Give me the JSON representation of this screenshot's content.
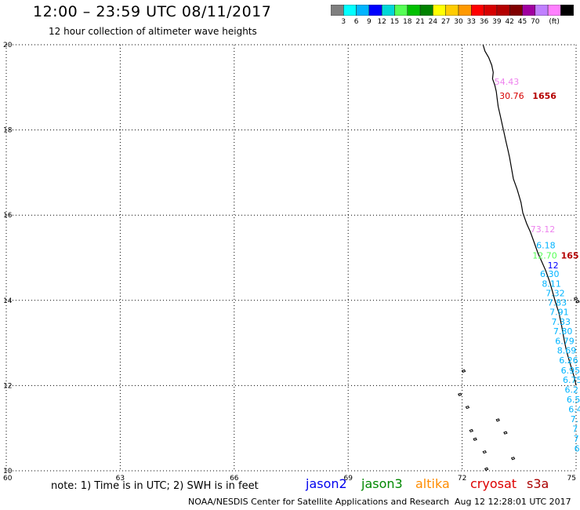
{
  "header": {
    "title": "12:00 – 23:59 UTC 08/11/2017",
    "subtitle": "12 hour collection of altimeter wave heights"
  },
  "colorbar": {
    "swatches": [
      "#7f7f7f",
      "#00ffff",
      "#00b4ff",
      "#0000ff",
      "#00d7d7",
      "#55ff55",
      "#00c000",
      "#008200",
      "#ffff00",
      "#ffcc00",
      "#ff9900",
      "#ff0000",
      "#d70000",
      "#b40000",
      "#800000",
      "#a000a0",
      "#c080ff",
      "#ff80ff",
      "#000000"
    ],
    "labels": [
      "3",
      "6",
      "9",
      "12",
      "15",
      "18",
      "21",
      "24",
      "27",
      "30",
      "33",
      "36",
      "39",
      "42",
      "45",
      "70",
      "(ft)"
    ]
  },
  "chart_data": {
    "type": "scatter",
    "title": "12:00 – 23:59 UTC 08/11/2017",
    "xlabel": "",
    "ylabel": "",
    "xlim": [
      60,
      75
    ],
    "ylim": [
      10,
      20
    ],
    "x_ticks": [
      "60",
      "63",
      "66",
      "69",
      "72",
      "75"
    ],
    "y_ticks": [
      "10",
      "12",
      "14",
      "16",
      "18",
      "20"
    ],
    "grid": true,
    "annotations": [
      {
        "text": "54.43",
        "lon": 72.85,
        "lat": 19.06,
        "color": "#ee82ee"
      },
      {
        "text": "30.76",
        "lon": 72.98,
        "lat": 18.73,
        "color": "#d70000"
      },
      {
        "text": "1656",
        "lon": 73.85,
        "lat": 18.73,
        "color": "#b40000",
        "bold": true
      },
      {
        "text": "73.12",
        "lon": 73.8,
        "lat": 15.6,
        "color": "#ee82ee"
      },
      {
        "text": "6.18",
        "lon": 73.95,
        "lat": 15.22,
        "color": "#00b4ff"
      },
      {
        "text": "12.70",
        "lon": 73.85,
        "lat": 14.98,
        "color": "#55ff55"
      },
      {
        "text": "165",
        "lon": 74.6,
        "lat": 14.98,
        "color": "#b40000",
        "bold": true
      },
      {
        "text": "12",
        "lon": 74.25,
        "lat": 14.75,
        "color": "#0000ff"
      },
      {
        "text": "6.30",
        "lon": 74.05,
        "lat": 14.55,
        "color": "#00b4ff"
      },
      {
        "text": "8.11",
        "lon": 74.1,
        "lat": 14.32,
        "color": "#00b4ff"
      },
      {
        "text": "7.32",
        "lon": 74.2,
        "lat": 14.1,
        "color": "#00b4ff"
      },
      {
        "text": "7.83",
        "lon": 74.25,
        "lat": 13.88,
        "color": "#00b4ff"
      },
      {
        "text": "7.91",
        "lon": 74.3,
        "lat": 13.66,
        "color": "#00b4ff"
      },
      {
        "text": "7.33",
        "lon": 74.35,
        "lat": 13.43,
        "color": "#00b4ff"
      },
      {
        "text": "7.80",
        "lon": 74.4,
        "lat": 13.2,
        "color": "#00b4ff"
      },
      {
        "text": "6.79",
        "lon": 74.45,
        "lat": 12.97,
        "color": "#00b4ff"
      },
      {
        "text": "8.69",
        "lon": 74.5,
        "lat": 12.75,
        "color": "#00b4ff"
      },
      {
        "text": "6.26",
        "lon": 74.55,
        "lat": 12.52,
        "color": "#00b4ff"
      },
      {
        "text": "6.95",
        "lon": 74.6,
        "lat": 12.28,
        "color": "#00b4ff"
      },
      {
        "text": "6.75",
        "lon": 74.65,
        "lat": 12.06,
        "color": "#00b4ff"
      },
      {
        "text": "6.2",
        "lon": 74.7,
        "lat": 11.83,
        "color": "#00b4ff"
      },
      {
        "text": "6.5",
        "lon": 74.75,
        "lat": 11.6,
        "color": "#00b4ff"
      },
      {
        "text": "6.4",
        "lon": 74.8,
        "lat": 11.37,
        "color": "#00b4ff"
      },
      {
        "text": "7.",
        "lon": 74.85,
        "lat": 11.14,
        "color": "#00b4ff"
      },
      {
        "text": "7",
        "lon": 74.9,
        "lat": 10.91,
        "color": "#00b4ff"
      },
      {
        "text": "7",
        "lon": 74.93,
        "lat": 10.68,
        "color": "#00b4ff"
      },
      {
        "text": "6",
        "lon": 74.95,
        "lat": 10.45,
        "color": "#00b4ff"
      }
    ]
  },
  "footer": {
    "note": "note: 1) Time is in UTC; 2) SWH is in feet",
    "satellites": [
      {
        "name": "jason2",
        "color": "#0000ee"
      },
      {
        "name": "jason3",
        "color": "#008800"
      },
      {
        "name": "altika",
        "color": "#ff8c00"
      },
      {
        "name": "cryosat",
        "color": "#dd0000"
      },
      {
        "name": "s3a",
        "color": "#aa0000"
      }
    ],
    "credit": "NOAA/NESDIS Center for Satellite Applications and Research",
    "timestamp": "Aug 12 12:28:01 UTC 2017"
  }
}
